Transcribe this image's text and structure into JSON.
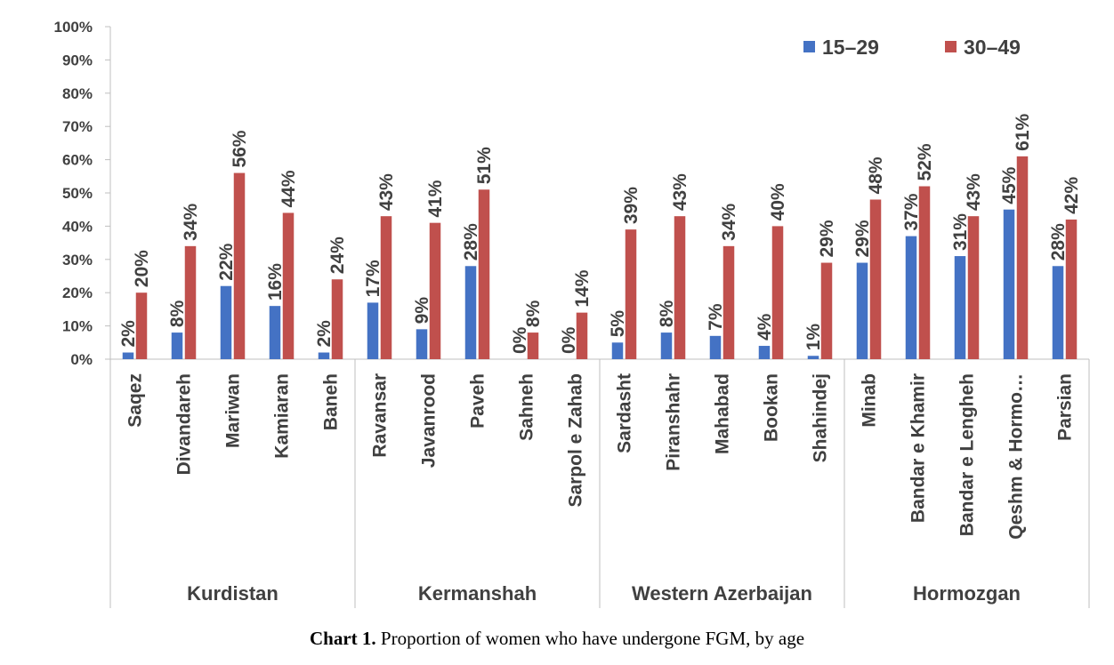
{
  "chart_data": {
    "type": "bar",
    "categories": [
      "Saqez",
      "Divandareh",
      "Mariwan",
      "Kamiaran",
      "Baneh",
      "Ravansar",
      "Javanrood",
      "Paveh",
      "Sahneh",
      "Sarpol e Zahab",
      "Sardasht",
      "Piranshahr",
      "Mahabad",
      "Bookan",
      "Shahindej",
      "Minab",
      "Bandar e Khamir",
      "Bandar e Lengheh",
      "Qeshm & Hormo…",
      "Parsian"
    ],
    "groups": [
      {
        "name": "Kurdistan",
        "count": 5
      },
      {
        "name": "Kermanshah",
        "count": 5
      },
      {
        "name": "Western Azerbaijan",
        "count": 5
      },
      {
        "name": "Hormozgan",
        "count": 5
      }
    ],
    "series": [
      {
        "name": "15–29",
        "color": "#4472C4",
        "values": [
          2,
          8,
          22,
          16,
          2,
          17,
          9,
          28,
          0,
          0,
          5,
          8,
          7,
          4,
          1,
          29,
          37,
          31,
          45,
          28
        ],
        "labels": [
          "2%",
          "8%",
          "22%",
          "16%",
          "2%",
          "17%",
          "9%",
          "28%",
          "0%",
          "0%",
          "5%",
          "8%",
          "7%",
          "4%",
          "1%",
          "29%",
          "37%",
          "31%",
          "45%",
          "28%"
        ]
      },
      {
        "name": "30–49",
        "color": "#C0504D",
        "values": [
          20,
          34,
          56,
          44,
          24,
          43,
          41,
          51,
          8,
          14,
          39,
          43,
          34,
          40,
          29,
          48,
          52,
          43,
          61,
          42
        ],
        "labels": [
          "20%",
          "34%",
          "56%",
          "44%",
          "24%",
          "43%",
          "41%",
          "51%",
          "8%",
          "14%",
          "39%",
          "43%",
          "34%",
          "40%",
          "29%",
          "48%",
          "52%",
          "43%",
          "61%",
          "42%"
        ]
      }
    ],
    "ylim": [
      0,
      100
    ],
    "yticks": [
      "0%",
      "10%",
      "20%",
      "30%",
      "40%",
      "50%",
      "60%",
      "70%",
      "80%",
      "90%",
      "100%"
    ],
    "grid": false,
    "legend": "top-right"
  },
  "caption": {
    "bold": "Chart 1.",
    "text": " Proportion of women who have undergone FGM, by age"
  }
}
